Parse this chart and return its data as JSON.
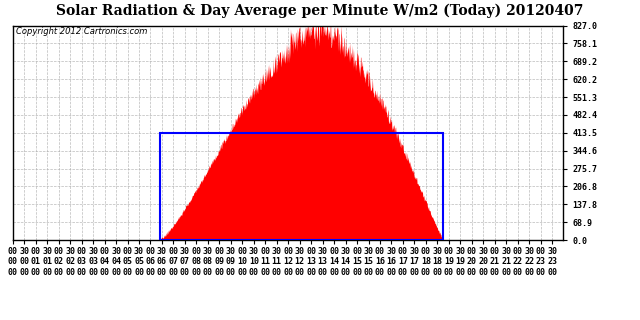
{
  "title": "Solar Radiation & Day Average per Minute W/m2 (Today) 20120407",
  "copyright": "Copyright 2012 Cartronics.com",
  "yticks": [
    0.0,
    68.9,
    137.8,
    206.8,
    275.7,
    344.6,
    413.5,
    482.4,
    551.3,
    620.2,
    689.2,
    758.1,
    827.0
  ],
  "ymax": 827.0,
  "ymin": 0.0,
  "fill_color": "red",
  "box_color": "blue",
  "background_color": "white",
  "grid_color": "#aaaaaa",
  "sunrise_minute": 385,
  "sunset_minute": 1125,
  "day_avg": 413.5,
  "peak_minute": 805,
  "peak_value": 827.0,
  "num_minutes": 1440,
  "title_fontsize": 10,
  "tick_fontsize": 6,
  "copyright_fontsize": 6
}
